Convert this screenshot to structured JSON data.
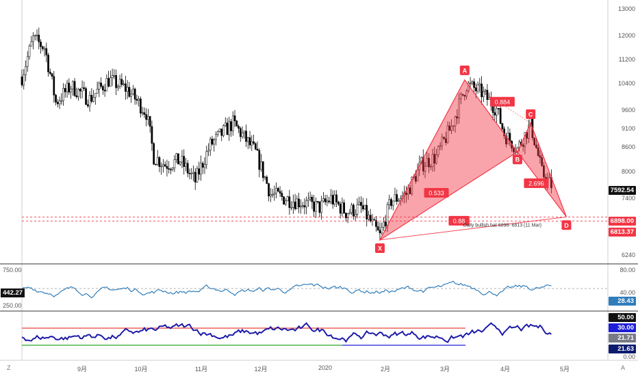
{
  "chart_data": {
    "type": "line",
    "main_panel": {
      "y_ticks": [
        13000,
        12000,
        11200,
        10400,
        9600,
        9100,
        8600,
        8000,
        7400,
        6240
      ],
      "ylim_log": [
        6000,
        13300
      ],
      "price_badges": [
        {
          "value": "7592.54",
          "bg": "#111111"
        },
        {
          "value": "6898.00",
          "bg": "#f23645"
        },
        {
          "value": "6813.37",
          "bg": "#f23645"
        }
      ],
      "levels": [
        6898,
        6813
      ],
      "pattern": {
        "points": {
          "X": {
            "day": 190,
            "price": 6430
          },
          "A": {
            "day": 235,
            "price": 10500
          },
          "B": {
            "day": 263,
            "price": 8420
          },
          "C": {
            "day": 270,
            "price": 9200
          },
          "D": {
            "day": 289,
            "price": 6900
          }
        },
        "labels": [
          "X",
          "A",
          "B",
          "C",
          "D"
        ],
        "ratios": [
          {
            "text": "0.533",
            "day": 220,
            "price": 7430
          },
          {
            "text": "0.884",
            "day": 255,
            "price": 9820
          },
          {
            "text": "2.696",
            "day": 273,
            "price": 7650
          },
          {
            "text": "0.88",
            "day": 232,
            "price": 6820
          }
        ],
        "note": "Daily bullish bat 6898- 6813 (11 Mar)"
      }
    },
    "panel2": {
      "left_ticks": [
        "750.00",
        "250.00"
      ],
      "left_badge": "442.27",
      "right_ticks": [
        "80.00",
        "40.00"
      ],
      "right_badge": "28.43",
      "level": 80
    },
    "panel3": {
      "right_ticks": [
        "0.00"
      ],
      "badges": [
        {
          "value": "50.00",
          "bg": "#111111"
        },
        {
          "value": "30.00",
          "bg": "#1e1ed8"
        },
        {
          "value": "21.71",
          "bg": "#787b86"
        },
        {
          "value": "21.63",
          "bg": "#0d1b6e"
        }
      ]
    },
    "x_axis": {
      "labels": [
        {
          "text": "9月",
          "day": 35
        },
        {
          "text": "10月",
          "day": 65
        },
        {
          "text": "11月",
          "day": 96
        },
        {
          "text": "12月",
          "day": 126
        },
        {
          "text": "2020",
          "day": 157
        },
        {
          "text": "2月",
          "day": 188
        },
        {
          "text": "3月",
          "day": 217
        },
        {
          "text": "4月",
          "day": 248
        },
        {
          "text": "5月",
          "day": 278
        }
      ]
    },
    "corners": {
      "left": "Z",
      "right": "A"
    },
    "colors": {
      "up": "#000000",
      "down": "#000000",
      "pattern_fill": "#f23645",
      "pattern_line": "#f23645",
      "rsi_line": "#2f7dbb",
      "stoch_line": "#1d1aa8",
      "green": "#26a626",
      "red": "#e8453c"
    }
  }
}
